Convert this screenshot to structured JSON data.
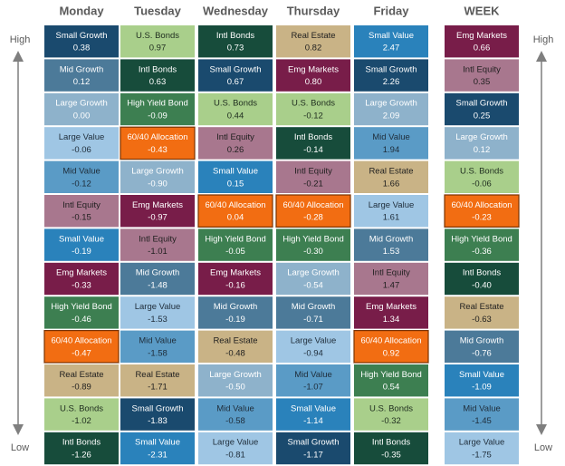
{
  "axis": {
    "high": "High",
    "low": "Low"
  },
  "styles": {
    "Small Growth": [
      "#1a4a6e",
      "#ffffff"
    ],
    "Mid Growth": [
      "#4c7a99",
      "#ffffff"
    ],
    "Large Growth": [
      "#8eb2cb",
      "#ffffff"
    ],
    "Large Value": [
      "#9fc6e4",
      "#1f2d3a"
    ],
    "Mid Value": [
      "#5a9bc6",
      "#1f2d3a"
    ],
    "Small Value": [
      "#2a82bb",
      "#ffffff"
    ],
    "Intl Equity": [
      "#a8778e",
      "#1f1f1f"
    ],
    "Emg Markets": [
      "#781d49",
      "#ffffff"
    ],
    "60/40 Allocation": [
      "#f26d12",
      "#ffffff",
      "#7a3200"
    ],
    "High Yield Bond": [
      "#3d7f51",
      "#ffffff"
    ],
    "U.S. Bonds": [
      "#a9cf8b",
      "#1f2d1f"
    ],
    "Intl Bonds": [
      "#174c3b",
      "#ffffff"
    ],
    "Real Estate": [
      "#c9b386",
      "#1f1f1f"
    ]
  },
  "columns": [
    {
      "header": "Monday",
      "cells": [
        [
          "Small Growth",
          "0.38"
        ],
        [
          "Mid Growth",
          "0.12"
        ],
        [
          "Large Growth",
          "0.00"
        ],
        [
          "Large Value",
          "-0.06"
        ],
        [
          "Mid Value",
          "-0.12"
        ],
        [
          "Intl Equity",
          "-0.15"
        ],
        [
          "Small Value",
          "-0.19"
        ],
        [
          "Emg Markets",
          "-0.33"
        ],
        [
          "High Yield Bond",
          "-0.46"
        ],
        [
          "60/40 Allocation",
          "-0.47"
        ],
        [
          "Real Estate",
          "-0.89"
        ],
        [
          "U.S. Bonds",
          "-1.02"
        ],
        [
          "Intl Bonds",
          "-1.26"
        ]
      ]
    },
    {
      "header": "Tuesday",
      "cells": [
        [
          "U.S. Bonds",
          "0.97"
        ],
        [
          "Intl Bonds",
          "0.63"
        ],
        [
          "High Yield Bond",
          "-0.09"
        ],
        [
          "60/40 Allocation",
          "-0.43"
        ],
        [
          "Large Growth",
          "-0.90"
        ],
        [
          "Emg Markets",
          "-0.97"
        ],
        [
          "Intl Equity",
          "-1.01"
        ],
        [
          "Mid Growth",
          "-1.48"
        ],
        [
          "Large Value",
          "-1.53"
        ],
        [
          "Mid Value",
          "-1.58"
        ],
        [
          "Real Estate",
          "-1.71"
        ],
        [
          "Small Growth",
          "-1.83"
        ],
        [
          "Small Value",
          "-2.31"
        ]
      ]
    },
    {
      "header": "Wednesday",
      "cells": [
        [
          "Intl Bonds",
          "0.73"
        ],
        [
          "Small Growth",
          "0.67"
        ],
        [
          "U.S. Bonds",
          "0.44"
        ],
        [
          "Intl Equity",
          "0.26"
        ],
        [
          "Small Value",
          "0.15"
        ],
        [
          "60/40 Allocation",
          "0.04"
        ],
        [
          "High Yield Bond",
          "-0.05"
        ],
        [
          "Emg Markets",
          "-0.16"
        ],
        [
          "Mid Growth",
          "-0.19"
        ],
        [
          "Real Estate",
          "-0.48"
        ],
        [
          "Large Growth",
          "-0.50"
        ],
        [
          "Mid Value",
          "-0.58"
        ],
        [
          "Large Value",
          "-0.81"
        ]
      ]
    },
    {
      "header": "Thursday",
      "cells": [
        [
          "Real Estate",
          "0.82"
        ],
        [
          "Emg Markets",
          "0.80"
        ],
        [
          "U.S. Bonds",
          "-0.12"
        ],
        [
          "Intl Bonds",
          "-0.14"
        ],
        [
          "Intl Equity",
          "-0.21"
        ],
        [
          "60/40 Allocation",
          "-0.28"
        ],
        [
          "High Yield Bond",
          "-0.30"
        ],
        [
          "Large Growth",
          "-0.54"
        ],
        [
          "Mid Growth",
          "-0.71"
        ],
        [
          "Large Value",
          "-0.94"
        ],
        [
          "Mid Value",
          "-1.07"
        ],
        [
          "Small Value",
          "-1.14"
        ],
        [
          "Small Growth",
          "-1.17"
        ]
      ]
    },
    {
      "header": "Friday",
      "cells": [
        [
          "Small Value",
          "2.47"
        ],
        [
          "Small Growth",
          "2.26"
        ],
        [
          "Large Growth",
          "2.09"
        ],
        [
          "Mid Value",
          "1.94"
        ],
        [
          "Real Estate",
          "1.66"
        ],
        [
          "Large Value",
          "1.61"
        ],
        [
          "Mid Growth",
          "1.53"
        ],
        [
          "Intl Equity",
          "1.47"
        ],
        [
          "Emg Markets",
          "1.34"
        ],
        [
          "60/40 Allocation",
          "0.92"
        ],
        [
          "High Yield Bond",
          "0.54"
        ],
        [
          "U.S. Bonds",
          "-0.32"
        ],
        [
          "Intl Bonds",
          "-0.35"
        ]
      ]
    },
    {
      "header": "WEEK",
      "cells": [
        [
          "Emg Markets",
          "0.66"
        ],
        [
          "Intl Equity",
          "0.35"
        ],
        [
          "Small Growth",
          "0.25"
        ],
        [
          "Large Growth",
          "0.12"
        ],
        [
          "U.S. Bonds",
          "-0.06"
        ],
        [
          "60/40 Allocation",
          "-0.23"
        ],
        [
          "High Yield Bond",
          "-0.36"
        ],
        [
          "Intl Bonds",
          "-0.40"
        ],
        [
          "Real Estate",
          "-0.63"
        ],
        [
          "Mid Growth",
          "-0.76"
        ],
        [
          "Small Value",
          "-1.09"
        ],
        [
          "Mid Value",
          "-1.45"
        ],
        [
          "Large Value",
          "-1.75"
        ]
      ]
    }
  ]
}
